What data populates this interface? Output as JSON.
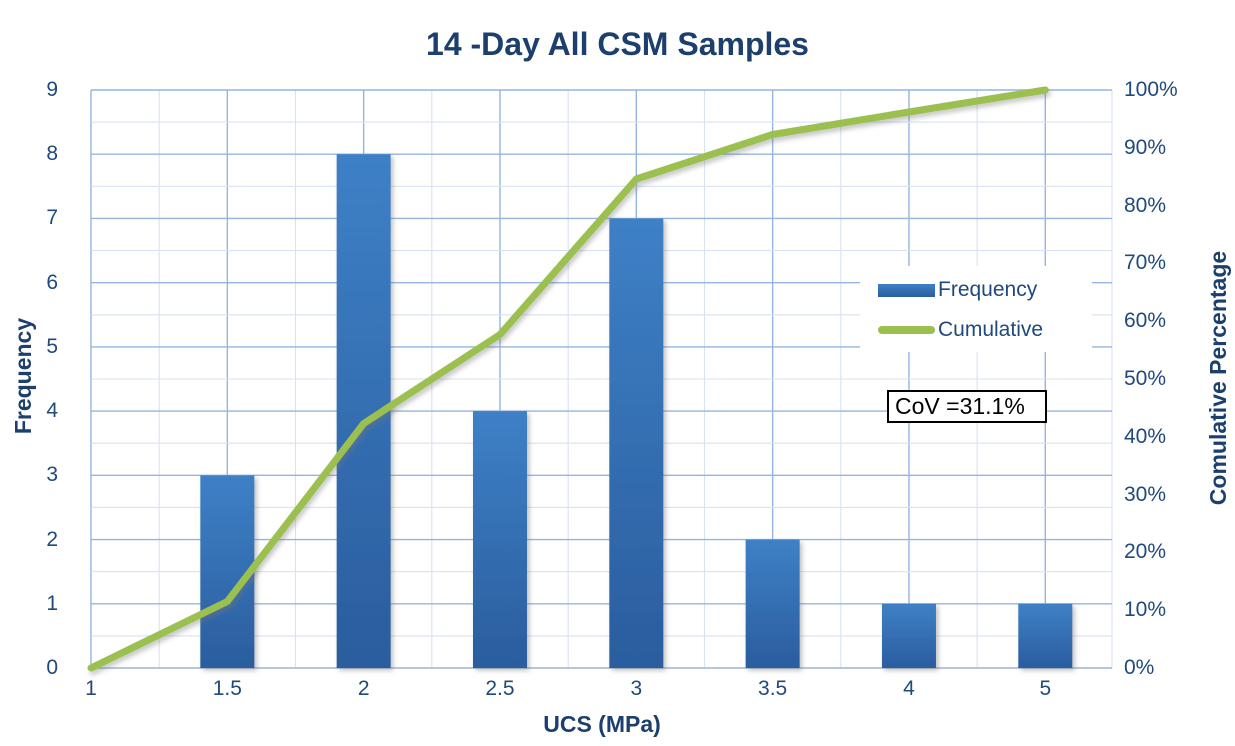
{
  "title": "14 -Day All CSM Samples",
  "chart_data": {
    "type": "bar",
    "subtype": "pareto-histogram",
    "categories": [
      "1",
      "1.5",
      "2",
      "2.5",
      "3",
      "3.5",
      "4",
      "5"
    ],
    "series": [
      {
        "name": "Frequency",
        "type": "bar",
        "axis": "left",
        "values": [
          0,
          3,
          8,
          4,
          7,
          2,
          1,
          1
        ]
      },
      {
        "name": "Cumulative",
        "type": "line",
        "axis": "right",
        "values_pct": [
          0,
          11.5,
          42.3,
          57.7,
          84.6,
          92.3,
          96.2,
          100
        ]
      }
    ],
    "title": "14 -Day All CSM Samples",
    "xlabel": "UCS (MPa)",
    "ylabel_left": "Frequency",
    "ylabel_right": "Comulative Percentage",
    "y_left_ticks": [
      "0",
      "1",
      "2",
      "3",
      "4",
      "5",
      "6",
      "7",
      "8",
      "9"
    ],
    "y_right_ticks": [
      "0%",
      "10%",
      "20%",
      "30%",
      "40%",
      "50%",
      "60%",
      "70%",
      "80%",
      "90%",
      "100%"
    ],
    "ylim_left": [
      0,
      9
    ],
    "ylim_right": [
      0,
      100
    ],
    "grid": "major-and-minor",
    "legend_position": "inside-upper-right"
  },
  "legend": {
    "items": [
      {
        "label": "Frequency",
        "swatch": "bar-swatch-icon"
      },
      {
        "label": "Cumulative",
        "swatch": "line-swatch-icon"
      }
    ]
  },
  "annotation": {
    "text": "CoV =31.1%"
  },
  "colors": {
    "title_navy": "#1d3f6e",
    "tick_navy": "#20497c",
    "bar_top": "#3e80c6",
    "bar_bottom": "#2a5d9e",
    "line_green": "#9cc04f",
    "grid_major": "#96b4e1",
    "grid_minor": "#d7e2f3",
    "axis_line": "#9db3d3",
    "annotation_border": "#000000",
    "background": "#ffffff"
  }
}
